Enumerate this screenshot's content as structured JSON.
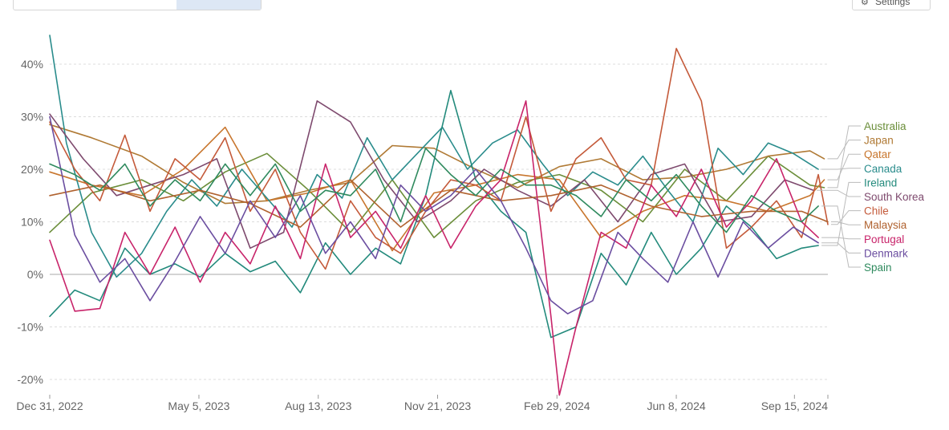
{
  "toolbar": {
    "tabs": [
      {
        "label": "",
        "icon": "table-icon"
      },
      {
        "label": "",
        "icon": "map-icon"
      },
      {
        "label": "",
        "icon": "chart-icon",
        "active": true
      }
    ],
    "settings_label": "Settings",
    "settings_icon": "gear-icon"
  },
  "chart_data": {
    "type": "line",
    "title": "",
    "xlabel": "",
    "ylabel": "",
    "x_start": "2022-12-31",
    "x_end": "2024-10-13",
    "x_ticks": [
      "Dec 31, 2022",
      "May 5, 2023",
      "Aug 13, 2023",
      "Nov 21, 2023",
      "Feb 29, 2024",
      "Jun 8, 2024",
      "Sep 15, 2024"
    ],
    "y_ticks": [
      "-20%",
      "-10%",
      "0%",
      "10%",
      "20%",
      "30%",
      "40%"
    ],
    "ylim": [
      -22,
      45
    ],
    "grid": "horizontal dotted",
    "legend": "right, labels at line ends",
    "series": [
      {
        "name": "Australia",
        "color": "#6b8e3a",
        "x": [
          "2022-12-31",
          "2023-02-04",
          "2023-03-18",
          "2023-04-22",
          "2023-05-27",
          "2023-07-01",
          "2023-08-05",
          "2023-09-09",
          "2023-10-14",
          "2023-11-18",
          "2023-12-23",
          "2024-01-27",
          "2024-03-02",
          "2024-04-06",
          "2024-05-11",
          "2024-06-15",
          "2024-07-20",
          "2024-08-24",
          "2024-09-28",
          "2024-10-10"
        ],
        "y": [
          8.0,
          15.5,
          18.0,
          14.0,
          19.5,
          23.0,
          16.0,
          8.0,
          18.0,
          7.0,
          14.0,
          17.5,
          19.0,
          16.0,
          10.0,
          20.0,
          14.0,
          22.5,
          17.0,
          16.5
        ]
      },
      {
        "name": "Japan",
        "color": "#b07a35",
        "x": [
          "2022-12-31",
          "2023-02-04",
          "2023-03-18",
          "2023-04-22",
          "2023-05-27",
          "2023-07-01",
          "2023-08-05",
          "2023-09-09",
          "2023-10-14",
          "2023-11-18",
          "2023-12-23",
          "2024-01-27",
          "2024-03-02",
          "2024-04-06",
          "2024-05-11",
          "2024-06-15",
          "2024-07-20",
          "2024-08-24",
          "2024-09-28",
          "2024-10-10"
        ],
        "y": [
          28.5,
          26.0,
          22.5,
          17.5,
          13.5,
          14.0,
          16.0,
          17.5,
          24.5,
          24.0,
          20.0,
          16.5,
          20.5,
          22.0,
          18.0,
          18.5,
          20.0,
          22.5,
          23.5,
          22.0
        ]
      },
      {
        "name": "Qatar",
        "color": "#c8762e",
        "x": [
          "2022-12-31",
          "2023-02-04",
          "2023-03-18",
          "2023-04-22",
          "2023-05-27",
          "2023-07-01",
          "2023-08-05",
          "2023-09-09",
          "2023-10-14",
          "2023-11-18",
          "2023-12-23",
          "2024-01-27",
          "2024-03-02",
          "2024-04-06",
          "2024-05-11",
          "2024-06-15",
          "2024-07-20",
          "2024-08-24",
          "2024-09-28",
          "2024-10-10"
        ],
        "y": [
          19.5,
          17.0,
          15.0,
          20.0,
          28.0,
          14.0,
          15.5,
          18.0,
          4.5,
          15.5,
          17.0,
          19.0,
          18.0,
          7.0,
          12.0,
          15.0,
          14.0,
          12.0,
          15.0,
          18.0
        ]
      },
      {
        "name": "Canada",
        "color": "#2a8c8c",
        "x": [
          "2022-12-31",
          "2023-01-14",
          "2023-02-04",
          "2023-02-25",
          "2023-03-18",
          "2023-04-08",
          "2023-04-29",
          "2023-05-20",
          "2023-06-10",
          "2023-07-01",
          "2023-07-22",
          "2023-08-12",
          "2023-09-02",
          "2023-09-23",
          "2023-10-14",
          "2023-11-04",
          "2023-11-25",
          "2023-12-16",
          "2024-01-06",
          "2024-01-27",
          "2024-02-17",
          "2024-03-09",
          "2024-03-30",
          "2024-04-20",
          "2024-05-11",
          "2024-06-01",
          "2024-06-22",
          "2024-07-13",
          "2024-08-03",
          "2024-08-24",
          "2024-09-14",
          "2024-10-05"
        ],
        "y": [
          45.5,
          25.0,
          8.0,
          -0.5,
          4.0,
          12.0,
          18.0,
          13.0,
          20.0,
          14.5,
          9.0,
          19.0,
          14.5,
          26.0,
          18.0,
          23.0,
          28.0,
          20.0,
          25.0,
          27.5,
          21.0,
          15.0,
          19.5,
          17.0,
          22.5,
          16.0,
          10.0,
          24.0,
          19.0,
          25.0,
          23.0,
          20.0
        ]
      },
      {
        "name": "Ireland",
        "color": "#238a7c",
        "x": [
          "2022-12-31",
          "2023-01-21",
          "2023-02-11",
          "2023-03-04",
          "2023-03-25",
          "2023-04-15",
          "2023-05-06",
          "2023-05-27",
          "2023-06-17",
          "2023-07-08",
          "2023-07-29",
          "2023-08-19",
          "2023-09-09",
          "2023-09-30",
          "2023-10-21",
          "2023-11-11",
          "2023-12-02",
          "2023-12-23",
          "2024-01-13",
          "2024-02-03",
          "2024-02-24",
          "2024-03-16",
          "2024-04-06",
          "2024-04-27",
          "2024-05-18",
          "2024-06-08",
          "2024-06-29",
          "2024-07-20",
          "2024-08-10",
          "2024-08-31",
          "2024-09-21",
          "2024-10-05"
        ],
        "y": [
          -8.0,
          -3.0,
          -5.0,
          5.0,
          0.0,
          2.0,
          -0.5,
          4.0,
          0.5,
          2.5,
          -3.5,
          6.0,
          0.0,
          5.0,
          2.0,
          15.0,
          35.0,
          18.0,
          12.0,
          8.0,
          -12.0,
          -10.0,
          4.0,
          -2.0,
          8.0,
          0.0,
          5.0,
          13.0,
          9.0,
          3.0,
          5.0,
          5.5
        ]
      },
      {
        "name": "South Korea",
        "color": "#7e4a6e",
        "x": [
          "2022-12-31",
          "2023-01-28",
          "2023-02-25",
          "2023-03-25",
          "2023-04-22",
          "2023-05-20",
          "2023-06-17",
          "2023-07-15",
          "2023-08-12",
          "2023-09-09",
          "2023-10-07",
          "2023-11-04",
          "2023-12-02",
          "2023-12-30",
          "2024-01-27",
          "2024-02-24",
          "2024-03-23",
          "2024-04-20",
          "2024-05-18",
          "2024-06-15",
          "2024-07-13",
          "2024-08-10",
          "2024-09-07",
          "2024-10-01"
        ],
        "y": [
          30.5,
          22.0,
          15.0,
          17.0,
          19.0,
          22.0,
          5.0,
          8.0,
          33.0,
          29.0,
          18.0,
          10.0,
          14.0,
          20.0,
          16.0,
          13.0,
          18.0,
          10.0,
          19.0,
          21.0,
          10.0,
          11.0,
          18.0,
          16.0
        ]
      },
      {
        "name": "Chile",
        "color": "#c45a3a",
        "x": [
          "2022-12-31",
          "2023-01-21",
          "2023-02-11",
          "2023-03-04",
          "2023-03-25",
          "2023-04-15",
          "2023-05-06",
          "2023-05-27",
          "2023-06-17",
          "2023-07-08",
          "2023-07-29",
          "2023-08-19",
          "2023-09-09",
          "2023-09-30",
          "2023-10-21",
          "2023-11-11",
          "2023-12-02",
          "2023-12-23",
          "2024-01-13",
          "2024-02-03",
          "2024-02-24",
          "2024-03-16",
          "2024-04-06",
          "2024-04-27",
          "2024-05-18",
          "2024-06-08",
          "2024-06-29",
          "2024-07-20",
          "2024-08-10",
          "2024-08-31",
          "2024-09-21",
          "2024-10-05",
          "2024-10-13"
        ],
        "y": [
          29.0,
          20.0,
          14.0,
          26.5,
          12.0,
          22.0,
          18.0,
          26.0,
          12.0,
          20.0,
          8.0,
          1.0,
          14.0,
          7.0,
          4.0,
          12.0,
          18.0,
          17.0,
          14.0,
          30.0,
          12.0,
          22.0,
          26.0,
          18.0,
          17.0,
          43.0,
          33.0,
          5.0,
          9.0,
          14.0,
          7.0,
          19.0,
          9.5
        ]
      },
      {
        "name": "Malaysia",
        "color": "#b0622f",
        "x": [
          "2022-12-31",
          "2023-02-11",
          "2023-03-25",
          "2023-05-06",
          "2023-06-17",
          "2023-07-29",
          "2023-09-09",
          "2023-10-21",
          "2023-12-02",
          "2024-01-13",
          "2024-02-24",
          "2024-04-06",
          "2024-05-18",
          "2024-06-29",
          "2024-08-10",
          "2024-09-21",
          "2024-10-13"
        ],
        "y": [
          15.0,
          17.0,
          14.0,
          16.0,
          13.5,
          9.0,
          18.0,
          9.0,
          16.0,
          14.0,
          15.0,
          17.0,
          13.0,
          11.0,
          12.0,
          12.0,
          10.0
        ]
      },
      {
        "name": "Portugal",
        "color": "#c8246a",
        "x": [
          "2022-12-31",
          "2023-01-21",
          "2023-02-11",
          "2023-03-04",
          "2023-03-25",
          "2023-04-15",
          "2023-05-06",
          "2023-05-27",
          "2023-06-17",
          "2023-07-08",
          "2023-07-29",
          "2023-08-19",
          "2023-09-09",
          "2023-09-30",
          "2023-10-21",
          "2023-11-11",
          "2023-12-02",
          "2023-12-23",
          "2024-01-13",
          "2024-02-03",
          "2024-02-24",
          "2024-03-02",
          "2024-03-16",
          "2024-04-06",
          "2024-04-27",
          "2024-05-18",
          "2024-06-08",
          "2024-06-29",
          "2024-07-20",
          "2024-08-10",
          "2024-08-31",
          "2024-09-21",
          "2024-10-05"
        ],
        "y": [
          6.5,
          -7.0,
          -6.5,
          8.0,
          0.0,
          9.0,
          -1.5,
          8.0,
          2.0,
          13.0,
          3.0,
          21.0,
          7.0,
          12.0,
          5.0,
          15.0,
          5.0,
          13.0,
          18.0,
          33.0,
          -8.0,
          -23.0,
          -10.0,
          8.0,
          5.0,
          17.0,
          11.0,
          20.0,
          9.0,
          14.0,
          22.0,
          10.0,
          7.0
        ]
      },
      {
        "name": "Denmark",
        "color": "#6b4ea0",
        "x": [
          "2022-12-31",
          "2023-01-21",
          "2023-02-11",
          "2023-03-04",
          "2023-03-25",
          "2023-04-15",
          "2023-05-06",
          "2023-05-27",
          "2023-06-17",
          "2023-07-08",
          "2023-07-29",
          "2023-08-19",
          "2023-09-09",
          "2023-09-30",
          "2023-10-21",
          "2023-11-11",
          "2023-12-02",
          "2023-12-23",
          "2024-01-13",
          "2024-02-03",
          "2024-02-24",
          "2024-03-09",
          "2024-03-30",
          "2024-04-20",
          "2024-05-11",
          "2024-06-01",
          "2024-06-22",
          "2024-07-13",
          "2024-08-03",
          "2024-08-24",
          "2024-09-14",
          "2024-10-05"
        ],
        "y": [
          30.0,
          7.5,
          -1.5,
          3.0,
          -5.0,
          2.5,
          11.0,
          4.0,
          14.0,
          7.0,
          15.0,
          4.0,
          10.0,
          3.0,
          17.0,
          12.0,
          15.0,
          20.0,
          14.0,
          5.0,
          -5.0,
          -7.5,
          -5.0,
          8.0,
          3.0,
          -1.5,
          10.0,
          -0.5,
          10.0,
          5.0,
          9.0,
          6.0
        ]
      },
      {
        "name": "Spain",
        "color": "#2f8a5e",
        "x": [
          "2022-12-31",
          "2023-01-21",
          "2023-02-11",
          "2023-03-04",
          "2023-03-25",
          "2023-04-15",
          "2023-05-06",
          "2023-05-27",
          "2023-06-17",
          "2023-07-08",
          "2023-07-29",
          "2023-08-19",
          "2023-09-09",
          "2023-09-30",
          "2023-10-21",
          "2023-11-11",
          "2023-12-02",
          "2023-12-23",
          "2024-01-13",
          "2024-02-03",
          "2024-02-24",
          "2024-03-16",
          "2024-04-06",
          "2024-04-27",
          "2024-05-18",
          "2024-06-08",
          "2024-06-29",
          "2024-07-20",
          "2024-08-10",
          "2024-08-31",
          "2024-09-21",
          "2024-10-05"
        ],
        "y": [
          21.0,
          19.0,
          16.0,
          21.0,
          13.0,
          18.0,
          14.0,
          21.0,
          15.0,
          21.0,
          12.0,
          16.0,
          15.0,
          20.0,
          10.0,
          24.0,
          19.0,
          15.0,
          20.0,
          17.0,
          17.0,
          15.0,
          11.0,
          18.0,
          14.0,
          19.0,
          13.0,
          8.0,
          15.0,
          12.0,
          10.0,
          13.0
        ]
      }
    ]
  }
}
